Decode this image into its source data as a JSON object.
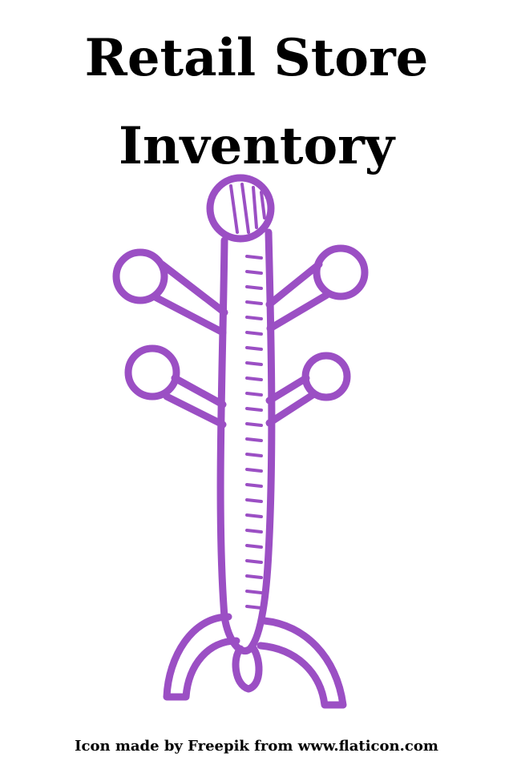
{
  "title": {
    "line1": "Retail Store",
    "line2": "Inventory"
  },
  "icon": {
    "name": "coat-rack-icon",
    "stroke_color": "#9b4fc4"
  },
  "credit": {
    "text": "Icon made by Freepik from www.flaticon.com"
  }
}
